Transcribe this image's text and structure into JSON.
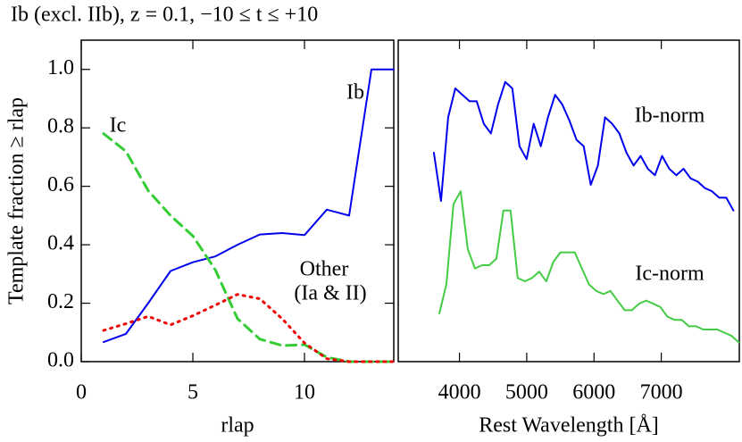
{
  "title": "Ib (excl. IIb), z = 0.1, −10 ≤ t ≤ +10",
  "chart_data": [
    {
      "type": "line",
      "xlabel": "rlap",
      "ylabel": "Template fraction ≥ rlap",
      "x": [
        1,
        2,
        3,
        4,
        5,
        6,
        7,
        8,
        9,
        10,
        11,
        12,
        13,
        14
      ],
      "xlim": [
        0,
        14
      ],
      "xticks": [
        0,
        5,
        10
      ],
      "ylim": [
        0,
        1.1
      ],
      "yticks": [
        {
          "value": 0,
          "label": "0.0"
        },
        0.2,
        0.4,
        0.6,
        0.8,
        {
          "value": 1,
          "label": "1.0"
        }
      ],
      "series": [
        {
          "name": "Ib",
          "color": "#0000ee",
          "style": "solid",
          "values": [
            0.067,
            0.095,
            0.2,
            0.31,
            0.34,
            0.36,
            0.4,
            0.435,
            0.44,
            0.433,
            0.52,
            0.5,
            1.0,
            1.0
          ]
        },
        {
          "name": "Ic",
          "color": "#33cc33",
          "style": "dashed",
          "values": [
            0.78,
            0.72,
            0.585,
            0.5,
            0.43,
            0.315,
            0.147,
            0.077,
            0.055,
            0.058,
            0.015,
            0,
            0,
            0
          ]
        },
        {
          "color": "#ee0000",
          "style": "dotted",
          "values": [
            0.107,
            0.13,
            0.155,
            0.126,
            0.157,
            0.193,
            0.23,
            0.215,
            0.147,
            0.064,
            0.01,
            0,
            0,
            0
          ]
        }
      ],
      "annotations": [
        "Other",
        "(Ia & II)"
      ]
    },
    {
      "type": "line",
      "xlabel": "Rest Wavelength [Å]",
      "xlim": [
        3090,
        8160
      ],
      "xticks": [
        4000,
        5000,
        6000,
        7000
      ],
      "ylim": [
        0,
        10
      ],
      "series": [
        {
          "name": "Ib-norm",
          "color": "#0000ee",
          "style": "solid",
          "x": [
            3620,
            3726,
            3832,
            3938,
            4044,
            4150,
            4256,
            4362,
            4468,
            4574,
            4680,
            4786,
            4892,
            4998,
            5104,
            5210,
            5316,
            5422,
            5528,
            5634,
            5740,
            5846,
            5952,
            6058,
            6164,
            6270,
            6376,
            6482,
            6588,
            6694,
            6800,
            6906,
            7012,
            7118,
            7224,
            7330,
            7436,
            7542,
            7648,
            7754,
            7860,
            7966,
            8072
          ],
          "values": [
            6.5,
            5.0,
            7.6,
            8.5,
            8.3,
            8.1,
            8.1,
            7.4,
            7.1,
            8.0,
            8.7,
            8.5,
            6.7,
            6.3,
            7.4,
            6.7,
            7.6,
            8.3,
            8.0,
            7.5,
            6.9,
            6.7,
            5.5,
            6.1,
            7.6,
            7.4,
            7.1,
            6.5,
            6.1,
            6.4,
            6.0,
            5.8,
            6.4,
            6.0,
            5.8,
            6.0,
            5.7,
            5.6,
            5.4,
            5.3,
            5.1,
            5.1,
            4.7
          ]
        },
        {
          "name": "Ic-norm",
          "color": "#44cc44",
          "style": "solid",
          "x": [
            3700,
            3806,
            3912,
            4018,
            4124,
            4230,
            4336,
            4442,
            4548,
            4654,
            4760,
            4866,
            4972,
            5078,
            5184,
            5290,
            5396,
            5502,
            5608,
            5714,
            5820,
            5926,
            6032,
            6138,
            6244,
            6350,
            6456,
            6562,
            6668,
            6774,
            6880,
            6986,
            7092,
            7198,
            7304,
            7410,
            7516,
            7622,
            7728,
            7834,
            7940,
            8046,
            8152
          ],
          "values": [
            1.5,
            2.4,
            4.9,
            5.3,
            3.5,
            2.9,
            3.0,
            3.0,
            3.2,
            4.7,
            4.7,
            2.6,
            2.5,
            2.6,
            2.8,
            2.5,
            3.1,
            3.4,
            3.4,
            3.4,
            2.9,
            2.4,
            2.2,
            2.1,
            2.2,
            1.9,
            1.6,
            1.6,
            1.8,
            1.9,
            1.8,
            1.7,
            1.4,
            1.3,
            1.3,
            1.1,
            1.1,
            1.0,
            1.0,
            1.0,
            0.9,
            0.8,
            0.6
          ]
        }
      ]
    }
  ]
}
